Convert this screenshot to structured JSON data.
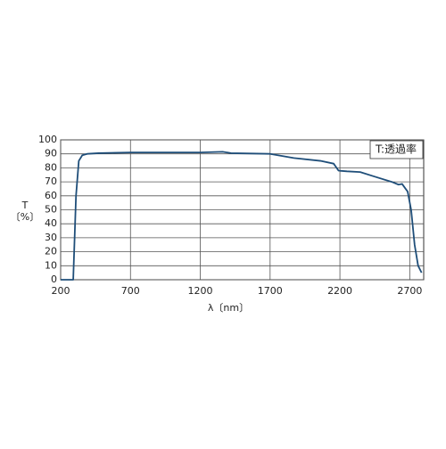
{
  "chart_data": {
    "type": "line",
    "annotation": "T:透過率",
    "ylabel": "T",
    "yunit": "〔%〕",
    "xlabel": "λ〔nm〕",
    "x": [
      200,
      290,
      310,
      330,
      355,
      390,
      470,
      700,
      1200,
      1360,
      1420,
      1700,
      1870,
      2060,
      2155,
      2190,
      2250,
      2345,
      2440,
      2570,
      2620,
      2645,
      2685,
      2710,
      2735,
      2760,
      2785
    ],
    "values": [
      0,
      0,
      60,
      85,
      89,
      90,
      90.5,
      91,
      91,
      91.5,
      90.5,
      90,
      87,
      85,
      83,
      78,
      77.5,
      77,
      74,
      70,
      68,
      68.5,
      63,
      50,
      25,
      10,
      5
    ],
    "color": "#1f4e79",
    "xlim": [
      200,
      2800
    ],
    "xticks": [
      200,
      700,
      1200,
      1700,
      2200,
      2700
    ],
    "ylim": [
      0,
      100
    ],
    "yticks": [
      0,
      10,
      20,
      30,
      40,
      50,
      60,
      70,
      80,
      90,
      100
    ],
    "grid": true
  }
}
